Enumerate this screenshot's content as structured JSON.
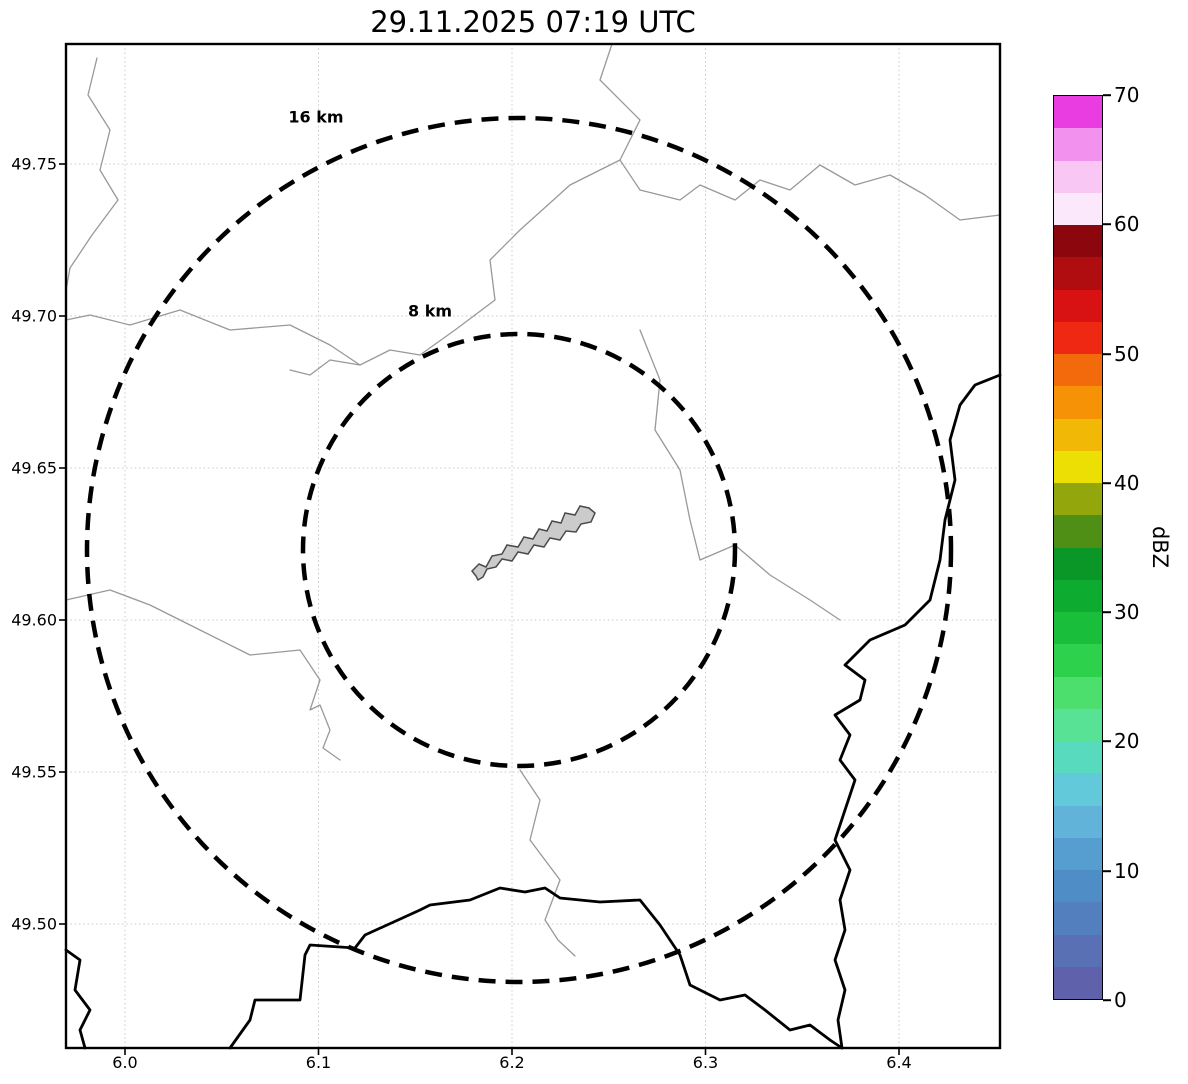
{
  "title": "29.11.2025 07:19 UTC",
  "axes": {
    "x_ticks": [
      "6.0",
      "6.1",
      "6.2",
      "6.3",
      "6.4"
    ],
    "y_ticks": [
      "49.75",
      "49.70",
      "49.65",
      "49.60",
      "49.55",
      "49.50"
    ]
  },
  "range_rings": {
    "outer_label": "16 km",
    "inner_label": "8 km"
  },
  "colorbar": {
    "label": "dBZ",
    "ticks": [
      "70",
      "60",
      "50",
      "40",
      "30",
      "20",
      "10",
      "0"
    ],
    "min": 0,
    "max": 70,
    "colors": [
      "#5f62aa",
      "#5a70b4",
      "#537fbe",
      "#4f8dc7",
      "#579ed0",
      "#62b3d9",
      "#62c9da",
      "#58dabf",
      "#57e295",
      "#4ddf6e",
      "#2ed14c",
      "#19bf3b",
      "#0dac30",
      "#0a9727",
      "#4f8f16",
      "#93a60c",
      "#ecdf04",
      "#f2b806",
      "#f59206",
      "#f26a0c",
      "#ee2812",
      "#d81113",
      "#b00d11",
      "#8c070d",
      "#fbe9fb",
      "#f8c7f4",
      "#f392ee",
      "#e93ce1"
    ]
  },
  "map": {
    "city_fill": "#cbcbcb",
    "city_outline": "#4a4a4a",
    "border_color": "#000000",
    "river_color": "#999999",
    "grid_color": "#c9c9c9"
  }
}
